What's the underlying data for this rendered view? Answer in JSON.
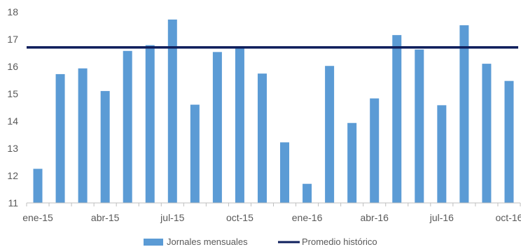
{
  "chart_data": {
    "type": "bar",
    "title": "",
    "xlabel": "",
    "ylabel": "",
    "ylim": [
      11,
      18
    ],
    "yticks": [
      11,
      12,
      13,
      14,
      15,
      16,
      17,
      18
    ],
    "grid": false,
    "legend_placement": "bottom",
    "categories": [
      "ene-15",
      "feb-15",
      "mar-15",
      "abr-15",
      "may-15",
      "jun-15",
      "jul-15",
      "ago-15",
      "sep-15",
      "oct-15",
      "nov-15",
      "dic-15",
      "ene-16",
      "feb-16",
      "mar-16",
      "abr-16",
      "may-16",
      "jun-16",
      "jul-16",
      "ago-16",
      "sep-16",
      "oct-16"
    ],
    "x_tick_labels": [
      "ene-15",
      "abr-15",
      "jul-15",
      "oct-15",
      "ene-16",
      "abr-16",
      "jul-16",
      "oct-16"
    ],
    "x_tick_label_indices": [
      0,
      3,
      6,
      9,
      12,
      15,
      18,
      21
    ],
    "series": [
      {
        "name": "Jornales mensuales",
        "type": "bar",
        "color": "#5b9bd5",
        "values": [
          12.25,
          15.72,
          15.93,
          15.1,
          16.57,
          16.78,
          17.72,
          14.6,
          16.53,
          16.68,
          15.74,
          13.22,
          11.7,
          16.02,
          13.93,
          14.83,
          17.15,
          16.62,
          14.58,
          17.51,
          16.1,
          15.47
        ]
      },
      {
        "name": "Promedio histórico",
        "type": "line",
        "color": "#0f1f5c",
        "values": [
          16.7,
          16.7,
          16.7,
          16.7,
          16.7,
          16.7,
          16.7,
          16.7,
          16.7,
          16.7,
          16.7,
          16.7,
          16.7,
          16.7,
          16.7,
          16.7,
          16.7,
          16.7,
          16.7,
          16.7,
          16.7,
          16.7
        ]
      }
    ]
  }
}
